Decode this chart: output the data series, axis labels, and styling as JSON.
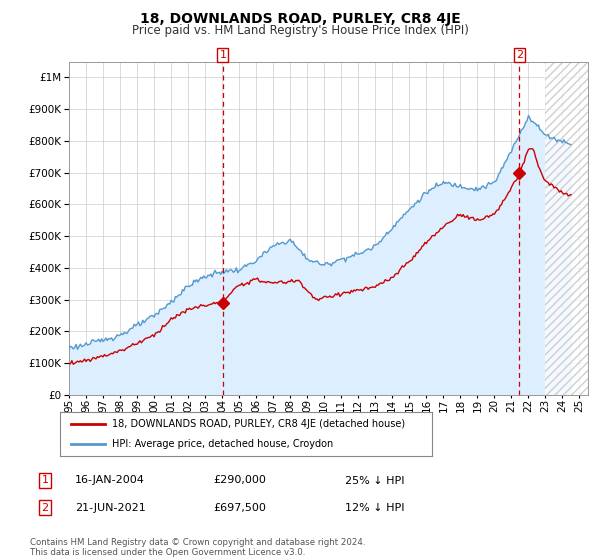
{
  "title": "18, DOWNLANDS ROAD, PURLEY, CR8 4JE",
  "subtitle": "Price paid vs. HM Land Registry's House Price Index (HPI)",
  "property_label": "18, DOWNLANDS ROAD, PURLEY, CR8 4JE (detached house)",
  "hpi_label": "HPI: Average price, detached house, Croydon",
  "annotation1": {
    "num": "1",
    "date": "16-JAN-2004",
    "price": "£290,000",
    "pct": "25% ↓ HPI",
    "x_year": 2004.04
  },
  "annotation2": {
    "num": "2",
    "date": "21-JUN-2021",
    "price": "£697,500",
    "pct": "12% ↓ HPI",
    "x_year": 2021.47
  },
  "sale1_value": 290000,
  "sale2_value": 697500,
  "property_color": "#cc0000",
  "hpi_color": "#5599cc",
  "vline_color": "#cc0000",
  "fill_color": "#ddeeff",
  "footnote": "Contains HM Land Registry data © Crown copyright and database right 2024.\nThis data is licensed under the Open Government Licence v3.0.",
  "ylim_min": 0,
  "ylim_max": 1050000,
  "xlim_min": 1995.0,
  "xlim_max": 2025.5,
  "hatch_start": 2023.0,
  "background_color": "#ffffff",
  "grid_color": "#cccccc",
  "title_fontsize": 10,
  "subtitle_fontsize": 8.5,
  "tick_fontsize": 7.5
}
